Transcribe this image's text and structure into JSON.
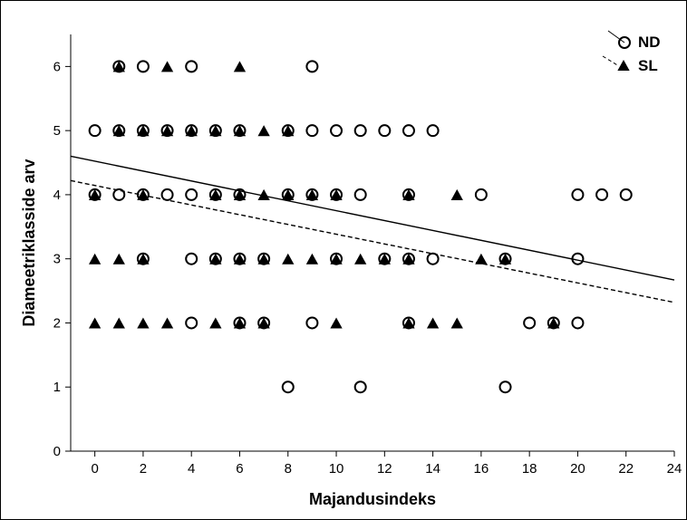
{
  "chart_data": {
    "type": "scatter",
    "xlabel": "Majandusindeks",
    "ylabel": "Diameetriklasside arv",
    "xlim": [
      -1,
      24
    ],
    "ylim": [
      0,
      6.5
    ],
    "x_ticks": [
      0,
      2,
      4,
      6,
      8,
      10,
      12,
      14,
      16,
      18,
      20,
      22,
      24
    ],
    "y_ticks": [
      0,
      1,
      2,
      3,
      4,
      5,
      6
    ],
    "grid": false,
    "legend": {
      "position": "top-right"
    },
    "series": [
      {
        "name": "ND",
        "marker": "open-circle",
        "line_style": "solid",
        "trend": {
          "x": [
            -1,
            24
          ],
          "y": [
            4.6,
            2.67
          ]
        },
        "points": [
          [
            1,
            6
          ],
          [
            2,
            6
          ],
          [
            4,
            6
          ],
          [
            9,
            6
          ],
          [
            0,
            5
          ],
          [
            1,
            5
          ],
          [
            2,
            5
          ],
          [
            3,
            5
          ],
          [
            4,
            5
          ],
          [
            5,
            5
          ],
          [
            6,
            5
          ],
          [
            8,
            5
          ],
          [
            9,
            5
          ],
          [
            10,
            5
          ],
          [
            11,
            5
          ],
          [
            12,
            5
          ],
          [
            13,
            5
          ],
          [
            14,
            5
          ],
          [
            0,
            4
          ],
          [
            1,
            4
          ],
          [
            2,
            4
          ],
          [
            3,
            4
          ],
          [
            4,
            4
          ],
          [
            5,
            4
          ],
          [
            6,
            4
          ],
          [
            8,
            4
          ],
          [
            9,
            4
          ],
          [
            10,
            4
          ],
          [
            11,
            4
          ],
          [
            13,
            4
          ],
          [
            16,
            4
          ],
          [
            20,
            4
          ],
          [
            21,
            4
          ],
          [
            22,
            4
          ],
          [
            2,
            3
          ],
          [
            4,
            3
          ],
          [
            5,
            3
          ],
          [
            6,
            3
          ],
          [
            7,
            3
          ],
          [
            10,
            3
          ],
          [
            12,
            3
          ],
          [
            13,
            3
          ],
          [
            14,
            3
          ],
          [
            17,
            3
          ],
          [
            20,
            3
          ],
          [
            4,
            2
          ],
          [
            6,
            2
          ],
          [
            7,
            2
          ],
          [
            9,
            2
          ],
          [
            13,
            2
          ],
          [
            18,
            2
          ],
          [
            19,
            2
          ],
          [
            20,
            2
          ],
          [
            8,
            1
          ],
          [
            11,
            1
          ],
          [
            17,
            1
          ]
        ]
      },
      {
        "name": "SL",
        "marker": "filled-triangle",
        "line_style": "dashed",
        "trend": {
          "x": [
            -1,
            24
          ],
          "y": [
            4.22,
            2.32
          ]
        },
        "points": [
          [
            1,
            6
          ],
          [
            3,
            6
          ],
          [
            6,
            6
          ],
          [
            1,
            5
          ],
          [
            2,
            5
          ],
          [
            3,
            5
          ],
          [
            4,
            5
          ],
          [
            5,
            5
          ],
          [
            6,
            5
          ],
          [
            7,
            5
          ],
          [
            8,
            5
          ],
          [
            0,
            4
          ],
          [
            2,
            4
          ],
          [
            5,
            4
          ],
          [
            6,
            4
          ],
          [
            7,
            4
          ],
          [
            8,
            4
          ],
          [
            9,
            4
          ],
          [
            10,
            4
          ],
          [
            13,
            4
          ],
          [
            15,
            4
          ],
          [
            0,
            3
          ],
          [
            1,
            3
          ],
          [
            2,
            3
          ],
          [
            5,
            3
          ],
          [
            6,
            3
          ],
          [
            7,
            3
          ],
          [
            8,
            3
          ],
          [
            9,
            3
          ],
          [
            10,
            3
          ],
          [
            11,
            3
          ],
          [
            12,
            3
          ],
          [
            13,
            3
          ],
          [
            16,
            3
          ],
          [
            17,
            3
          ],
          [
            0,
            2
          ],
          [
            1,
            2
          ],
          [
            2,
            2
          ],
          [
            3,
            2
          ],
          [
            5,
            2
          ],
          [
            6,
            2
          ],
          [
            7,
            2
          ],
          [
            10,
            2
          ],
          [
            13,
            2
          ],
          [
            14,
            2
          ],
          [
            15,
            2
          ],
          [
            19,
            2
          ]
        ]
      }
    ]
  }
}
